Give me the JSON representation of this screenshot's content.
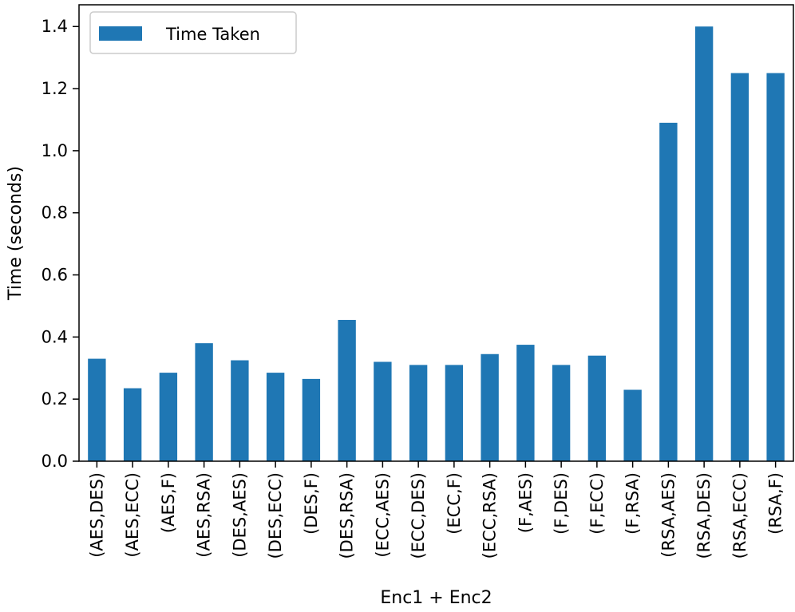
{
  "chart_data": {
    "type": "bar",
    "categories": [
      "(AES,DES)",
      "(AES,ECC)",
      "(AES,F)",
      "(AES,RSA)",
      "(DES,AES)",
      "(DES,ECC)",
      "(DES,F)",
      "(DES,RSA)",
      "(ECC,AES)",
      "(ECC,DES)",
      "(ECC,F)",
      "(ECC,RSA)",
      "(F,AES)",
      "(F,DES)",
      "(F,ECC)",
      "(F,RSA)",
      "(RSA,AES)",
      "(RSA,DES)",
      "(RSA,ECC)",
      "(RSA,F)"
    ],
    "series": [
      {
        "name": "Time Taken",
        "color": "#1f77b4",
        "values": [
          0.33,
          0.235,
          0.285,
          0.38,
          0.325,
          0.285,
          0.265,
          0.455,
          0.32,
          0.31,
          0.31,
          0.345,
          0.375,
          0.31,
          0.34,
          0.23,
          1.09,
          1.4,
          1.25,
          1.25
        ]
      }
    ],
    "title": "",
    "xlabel": "Enc1 + Enc2",
    "ylabel": "Time (seconds)",
    "ylim": [
      0,
      1.4
    ],
    "yticks": [
      "0.0",
      "0.2",
      "0.4",
      "0.6",
      "0.8",
      "1.0",
      "1.2",
      "1.4"
    ],
    "grid": false,
    "legend_position": "top-left"
  }
}
